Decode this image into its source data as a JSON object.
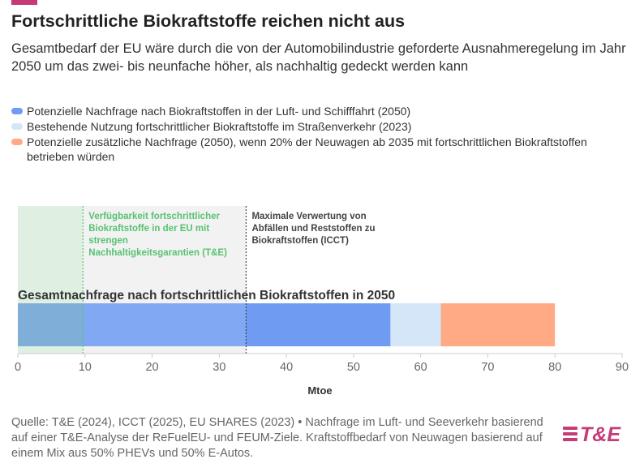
{
  "header": {
    "title": "Fortschrittliche Biokraftstoffe reichen nicht aus",
    "subtitle": "Gesamtbedarf der EU wäre durch die von der Automobilindustrie geforderte Ausnahmeregelung im Jahr 2050 um das zwei- bis neunfache höher, als nachhaltig gedeckt werden kann"
  },
  "legend": [
    {
      "label": "Potenzielle Nachfrage nach Biokraftstoffen in der Luft- und Schifffahrt (2050)",
      "color": "#6f9cf2"
    },
    {
      "label": "Bestehende Nutzung fortschrittlicher Biokraftstoffe im Straßenverkehr (2023)",
      "color": "#d4e6f7"
    },
    {
      "label": "Potenzielle zusätzliche Nachfrage (2050), wenn 20% der Neuwagen ab 2035 mit fortschrittlichen Biokraftstoffen betrieben würden",
      "color": "#ffaa84"
    }
  ],
  "chart_data": {
    "type": "bar",
    "orientation": "horizontal-stacked",
    "categories": [
      "Gesamtnachfrage nach fortschrittlichen Biokraftstoffen in 2050"
    ],
    "series": [
      {
        "name": "Potenzielle Nachfrage nach Biokraftstoffen in der Luft- und Schifffahrt (2050)",
        "values": [
          55.5
        ],
        "color": "#6f9cf2"
      },
      {
        "name": "Bestehende Nutzung fortschrittlicher Biokraftstoffe im Straßenverkehr (2023)",
        "values": [
          7.5
        ],
        "color": "#d4e6f7"
      },
      {
        "name": "Potenzielle zusätzliche Nachfrage (2050), wenn 20% der Neuwagen ab 2035 mit fortschrittlichen Biokraftstoffen betrieben würden",
        "values": [
          17.0
        ],
        "color": "#ffaa84"
      }
    ],
    "ranges": [
      {
        "label": "Verfügbarkeit fortschrittlicher Biokraftstoffe in der EU mit strengen Nachhaltigkeitsgarantien (T&E)",
        "from": 0,
        "to": 9.7,
        "color": "#dff0e2",
        "text_color": "#57c272"
      },
      {
        "label": "Maximale Verwertung von Abfällen und Reststoffen zu Biokraftstoffen (ICCT)",
        "from": 9.7,
        "to": 34,
        "color": "#f2f2f2",
        "text_color": "#444444"
      }
    ],
    "xlabel": "Mtoe",
    "ylabel": "",
    "xlim": [
      0,
      90
    ],
    "xticks": [
      0,
      10,
      20,
      30,
      40,
      50,
      60,
      70,
      80,
      90
    ],
    "bar_label": "Gesamtnachfrage nach fortschrittlichen Biokraftstoffen in 2050"
  },
  "footer": {
    "source": "Quelle: T&E (2024), ICCT (2025), EU SHARES (2023) • Nachfrage im Luft- und Seeverkehr basierend auf einer T&E-Analyse der ReFuelEU- und FEUM-Ziele. Kraftstoffbedarf von Neuwagen basierend auf einem Mix aus 50% PHEVs und 50% E-Autos.",
    "logo_text": "T&E",
    "logo_color": "#c63a78"
  }
}
